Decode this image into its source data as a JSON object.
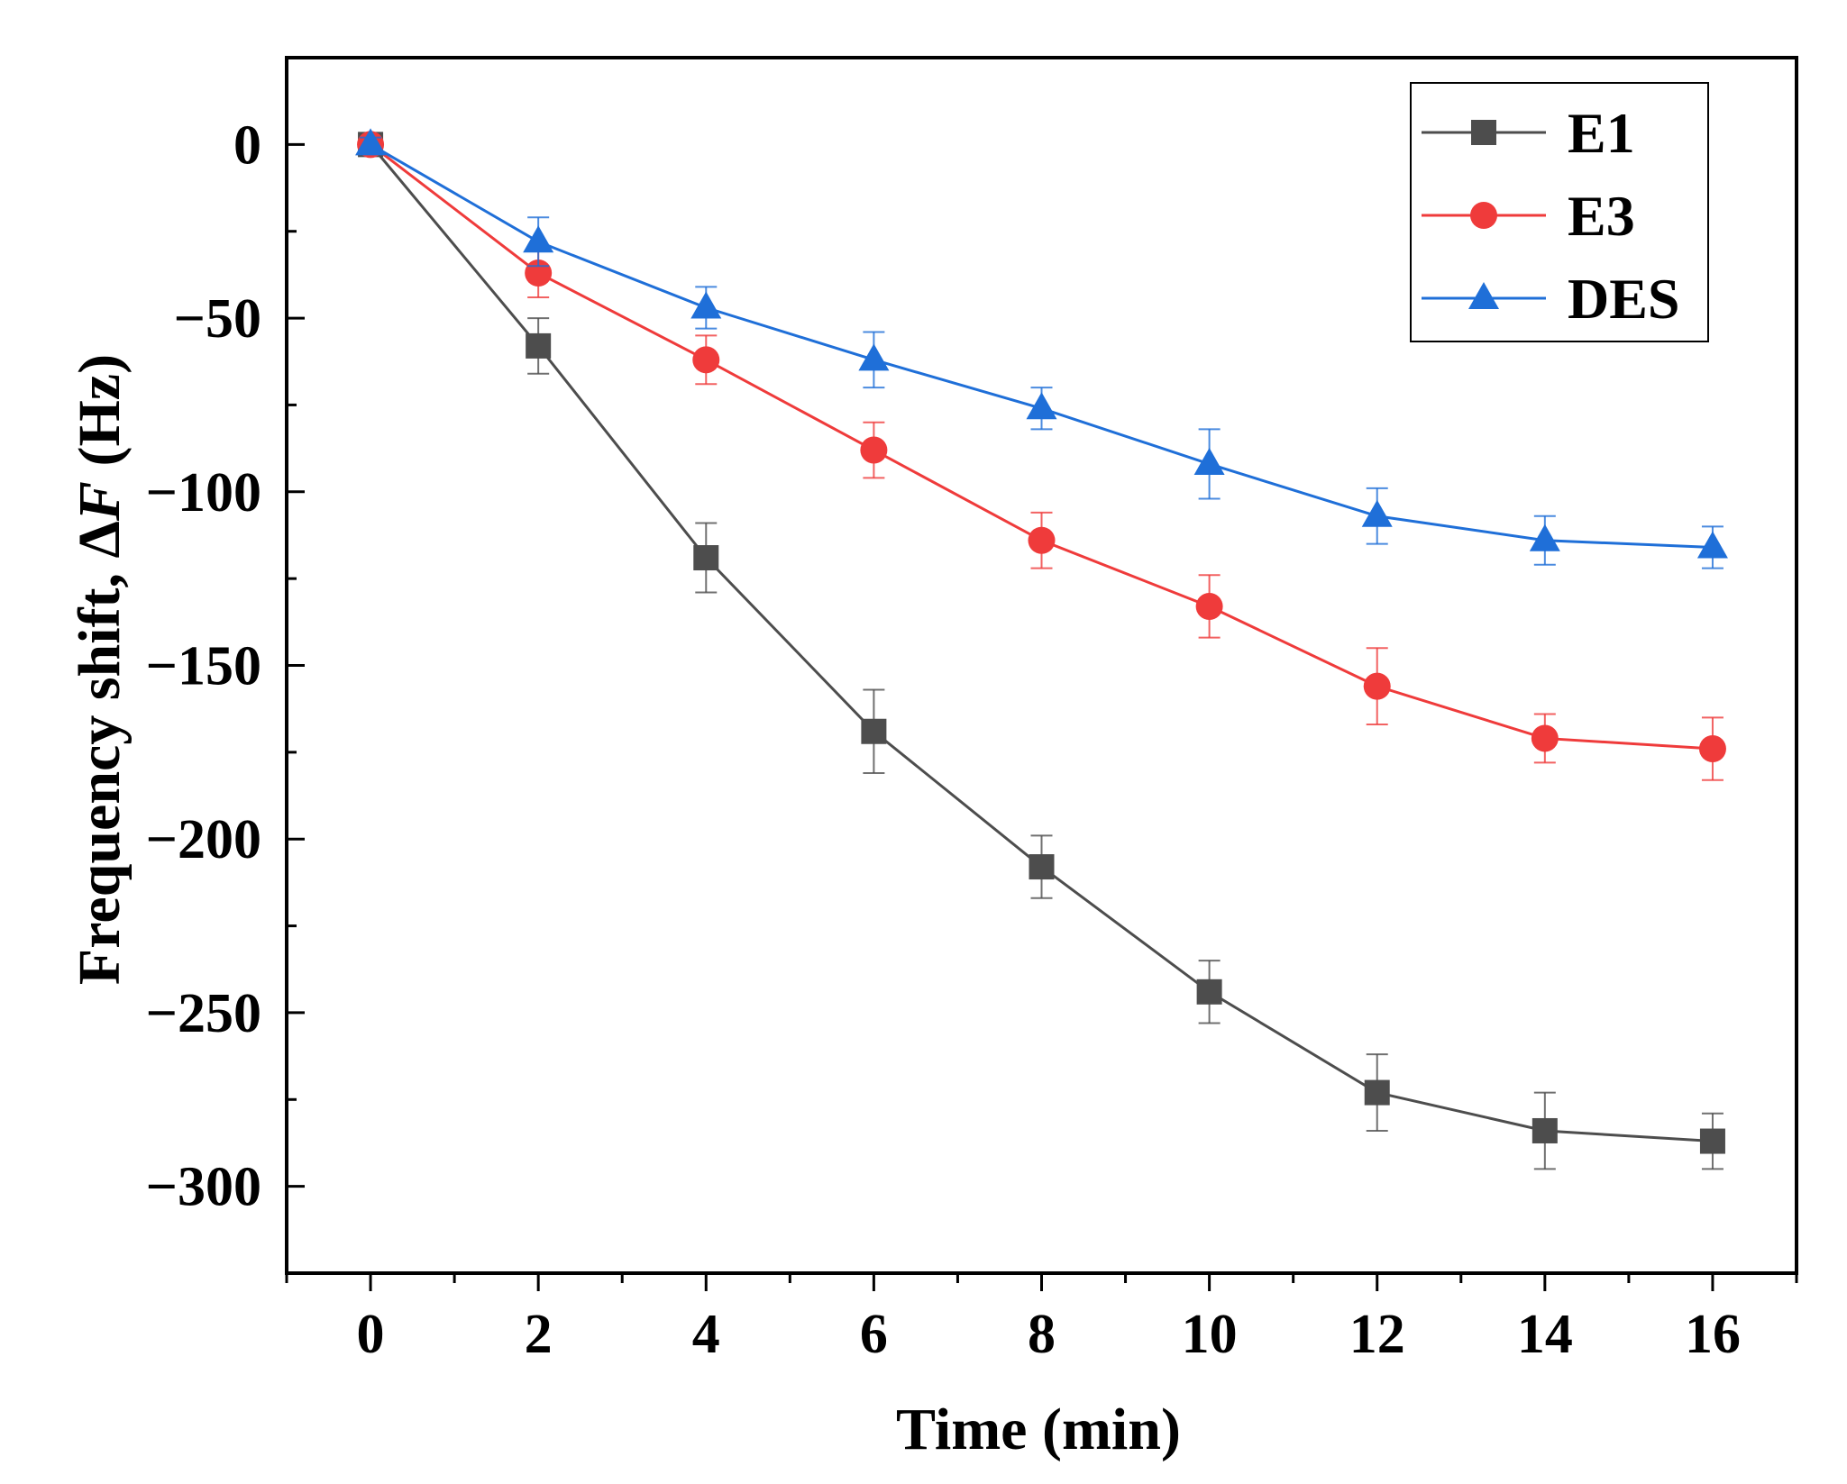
{
  "chart_data": {
    "type": "line",
    "title": "",
    "xlabel": "Time (min)",
    "ylabel": {
      "prefix": "Frequency shift, ",
      "delta": "Δ",
      "var": "F",
      "suffix": " (Hz)"
    },
    "xlim": [
      -1,
      17
    ],
    "ylim": [
      -325,
      25
    ],
    "x": [
      0,
      2,
      4,
      6,
      8,
      10,
      12,
      14,
      16
    ],
    "xticks": [
      0,
      2,
      4,
      6,
      8,
      10,
      12,
      14,
      16
    ],
    "xtick_labels": [
      "0",
      "2",
      "4",
      "6",
      "8",
      "10",
      "12",
      "14",
      "16"
    ],
    "yticks": [
      0,
      -50,
      -100,
      -150,
      -200,
      -250,
      -300
    ],
    "ytick_labels": [
      "0",
      "−50",
      "−100",
      "−150",
      "−200",
      "−250",
      "−300"
    ],
    "grid": false,
    "legend_position": "top-right",
    "series": [
      {
        "name": "E1",
        "marker": "square",
        "color": "#4d4d4d",
        "values": [
          0,
          -58,
          -119,
          -169,
          -208,
          -244,
          -273,
          -284,
          -287
        ],
        "errors": [
          2,
          8,
          10,
          12,
          9,
          9,
          11,
          11,
          8
        ]
      },
      {
        "name": "E3",
        "marker": "circle",
        "color": "#ef3b3b",
        "values": [
          0,
          -37,
          -62,
          -88,
          -114,
          -133,
          -156,
          -171,
          -174
        ],
        "errors": [
          2,
          7,
          7,
          8,
          8,
          9,
          11,
          7,
          9
        ]
      },
      {
        "name": "DES",
        "marker": "triangle",
        "color": "#1f6fd8",
        "values": [
          0,
          -28,
          -47,
          -62,
          -76,
          -92,
          -107,
          -114,
          -116
        ],
        "errors": [
          2,
          7,
          6,
          8,
          6,
          10,
          8,
          7,
          6
        ]
      }
    ]
  }
}
